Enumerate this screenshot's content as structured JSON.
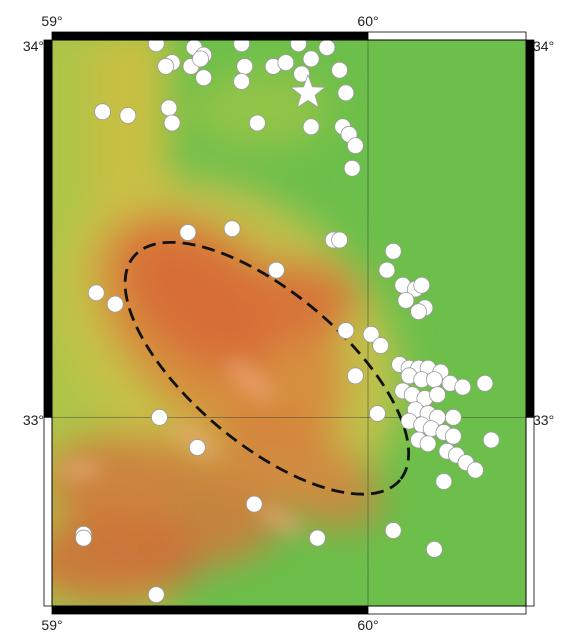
{
  "map": {
    "lon_min": 59.0,
    "lon_max": 60.5,
    "lat_min": 32.5,
    "lat_max": 34.0,
    "gridlines": {
      "lon": [
        60.0
      ],
      "lat": [
        33.0
      ]
    },
    "ticks": {
      "top": [
        "59°",
        "60°"
      ],
      "bottom": [
        "59°",
        "60°"
      ],
      "left": [
        "34°",
        "33°"
      ],
      "right": [
        "34°",
        "33°"
      ]
    },
    "tick_positions": {
      "lon": [
        59.0,
        60.0
      ],
      "lat": [
        34.0,
        33.0
      ]
    },
    "colors": {
      "lowland": "#6cbf4b",
      "midland": "#c2c84a",
      "highland": "#d8733a",
      "event_fill": "#ffffff",
      "event_stroke": "#9a9a9a",
      "ellipse": "#111111",
      "frame_dark": "#000000",
      "frame_light": "#ffffff"
    },
    "mainshock": {
      "lon": 59.81,
      "lat": 33.86,
      "symbol": "star"
    },
    "ellipse": {
      "center_lon": 59.68,
      "center_lat": 33.13,
      "semi_major_deg": 0.55,
      "semi_minor_deg": 0.24,
      "rotation_deg": 40,
      "style": "dashed"
    },
    "earthquakes": [
      {
        "lon": 59.33,
        "lat": 33.99
      },
      {
        "lon": 59.45,
        "lat": 33.98
      },
      {
        "lon": 59.6,
        "lat": 33.99
      },
      {
        "lon": 59.78,
        "lat": 33.99
      },
      {
        "lon": 59.87,
        "lat": 33.98
      },
      {
        "lon": 59.48,
        "lat": 33.96
      },
      {
        "lon": 59.38,
        "lat": 33.94
      },
      {
        "lon": 59.44,
        "lat": 33.93
      },
      {
        "lon": 59.47,
        "lat": 33.95
      },
      {
        "lon": 59.61,
        "lat": 33.93
      },
      {
        "lon": 59.7,
        "lat": 33.93
      },
      {
        "lon": 59.74,
        "lat": 33.94
      },
      {
        "lon": 59.82,
        "lat": 33.95
      },
      {
        "lon": 59.91,
        "lat": 33.92
      },
      {
        "lon": 59.36,
        "lat": 33.93
      },
      {
        "lon": 59.48,
        "lat": 33.9
      },
      {
        "lon": 59.6,
        "lat": 33.89
      },
      {
        "lon": 59.79,
        "lat": 33.91
      },
      {
        "lon": 59.93,
        "lat": 33.86
      },
      {
        "lon": 59.37,
        "lat": 33.82
      },
      {
        "lon": 59.16,
        "lat": 33.81
      },
      {
        "lon": 59.24,
        "lat": 33.8
      },
      {
        "lon": 59.38,
        "lat": 33.78
      },
      {
        "lon": 59.65,
        "lat": 33.78
      },
      {
        "lon": 59.82,
        "lat": 33.77
      },
      {
        "lon": 59.92,
        "lat": 33.77
      },
      {
        "lon": 59.94,
        "lat": 33.75
      },
      {
        "lon": 59.96,
        "lat": 33.72
      },
      {
        "lon": 59.95,
        "lat": 33.66
      },
      {
        "lon": 59.57,
        "lat": 33.5
      },
      {
        "lon": 59.43,
        "lat": 33.49
      },
      {
        "lon": 59.89,
        "lat": 33.47
      },
      {
        "lon": 59.91,
        "lat": 33.47
      },
      {
        "lon": 60.08,
        "lat": 33.44
      },
      {
        "lon": 60.06,
        "lat": 33.39
      },
      {
        "lon": 59.71,
        "lat": 33.39
      },
      {
        "lon": 59.14,
        "lat": 33.33
      },
      {
        "lon": 59.2,
        "lat": 33.3
      },
      {
        "lon": 60.11,
        "lat": 33.35
      },
      {
        "lon": 60.15,
        "lat": 33.34
      },
      {
        "lon": 60.17,
        "lat": 33.35
      },
      {
        "lon": 60.12,
        "lat": 33.31
      },
      {
        "lon": 60.18,
        "lat": 33.29
      },
      {
        "lon": 60.16,
        "lat": 33.28
      },
      {
        "lon": 59.93,
        "lat": 33.23
      },
      {
        "lon": 60.01,
        "lat": 33.22
      },
      {
        "lon": 60.04,
        "lat": 33.19
      },
      {
        "lon": 60.1,
        "lat": 33.14
      },
      {
        "lon": 60.13,
        "lat": 33.13
      },
      {
        "lon": 60.16,
        "lat": 33.13
      },
      {
        "lon": 60.19,
        "lat": 33.13
      },
      {
        "lon": 60.23,
        "lat": 33.12
      },
      {
        "lon": 60.13,
        "lat": 33.11
      },
      {
        "lon": 60.17,
        "lat": 33.1
      },
      {
        "lon": 60.21,
        "lat": 33.1
      },
      {
        "lon": 60.26,
        "lat": 33.09
      },
      {
        "lon": 60.3,
        "lat": 33.08
      },
      {
        "lon": 60.37,
        "lat": 33.09
      },
      {
        "lon": 59.96,
        "lat": 33.11
      },
      {
        "lon": 60.11,
        "lat": 33.07
      },
      {
        "lon": 60.14,
        "lat": 33.06
      },
      {
        "lon": 60.18,
        "lat": 33.05
      },
      {
        "lon": 60.22,
        "lat": 33.06
      },
      {
        "lon": 60.15,
        "lat": 33.02
      },
      {
        "lon": 60.19,
        "lat": 33.01
      },
      {
        "lon": 60.22,
        "lat": 33.0
      },
      {
        "lon": 60.27,
        "lat": 33.0
      },
      {
        "lon": 60.13,
        "lat": 32.99
      },
      {
        "lon": 60.17,
        "lat": 32.98
      },
      {
        "lon": 60.2,
        "lat": 32.97
      },
      {
        "lon": 60.24,
        "lat": 32.96
      },
      {
        "lon": 60.27,
        "lat": 32.95
      },
      {
        "lon": 60.16,
        "lat": 32.94
      },
      {
        "lon": 60.19,
        "lat": 32.93
      },
      {
        "lon": 60.25,
        "lat": 32.91
      },
      {
        "lon": 60.28,
        "lat": 32.9
      },
      {
        "lon": 60.39,
        "lat": 32.94
      },
      {
        "lon": 60.31,
        "lat": 32.88
      },
      {
        "lon": 60.34,
        "lat": 32.86
      },
      {
        "lon": 60.24,
        "lat": 32.83
      },
      {
        "lon": 60.03,
        "lat": 33.01
      },
      {
        "lon": 59.34,
        "lat": 33.0
      },
      {
        "lon": 59.46,
        "lat": 32.92
      },
      {
        "lon": 59.64,
        "lat": 32.77
      },
      {
        "lon": 59.1,
        "lat": 32.69
      },
      {
        "lon": 59.1,
        "lat": 32.68
      },
      {
        "lon": 59.84,
        "lat": 32.68
      },
      {
        "lon": 60.08,
        "lat": 32.7
      },
      {
        "lon": 60.21,
        "lat": 32.65
      },
      {
        "lon": 59.33,
        "lat": 32.53
      }
    ]
  }
}
